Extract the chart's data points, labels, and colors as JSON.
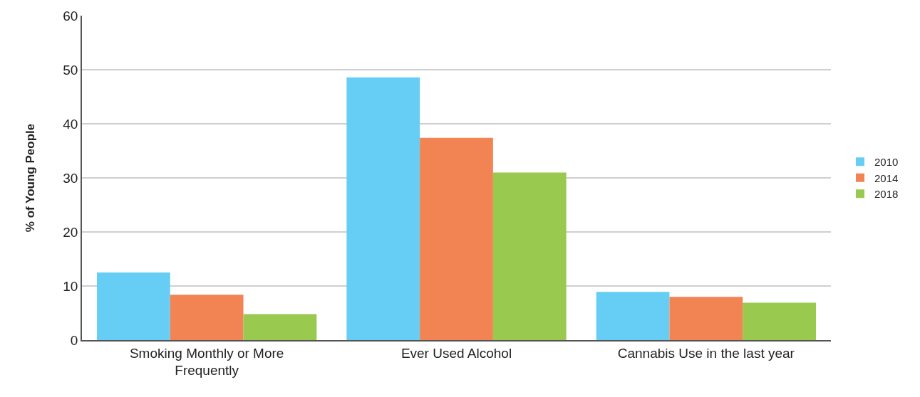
{
  "chart_data": {
    "type": "bar",
    "ylabel": "% of Young People",
    "categories": [
      "Smoking Monthly or More Frequently",
      "Ever Used Alcohol",
      "Cannabis Use in the last year"
    ],
    "series": [
      {
        "name": "2010",
        "color": "#66cef4",
        "values": [
          12.5,
          48.6,
          8.9
        ]
      },
      {
        "name": "2014",
        "color": "#f28352",
        "values": [
          8.4,
          37.4,
          8.0
        ]
      },
      {
        "name": "2018",
        "color": "#99c94f",
        "values": [
          4.8,
          31.0,
          6.9
        ]
      }
    ],
    "ylim": [
      0,
      60
    ],
    "yticks": [
      0,
      10,
      20,
      30,
      40,
      50,
      60
    ],
    "grid": "y",
    "legend": "right"
  }
}
